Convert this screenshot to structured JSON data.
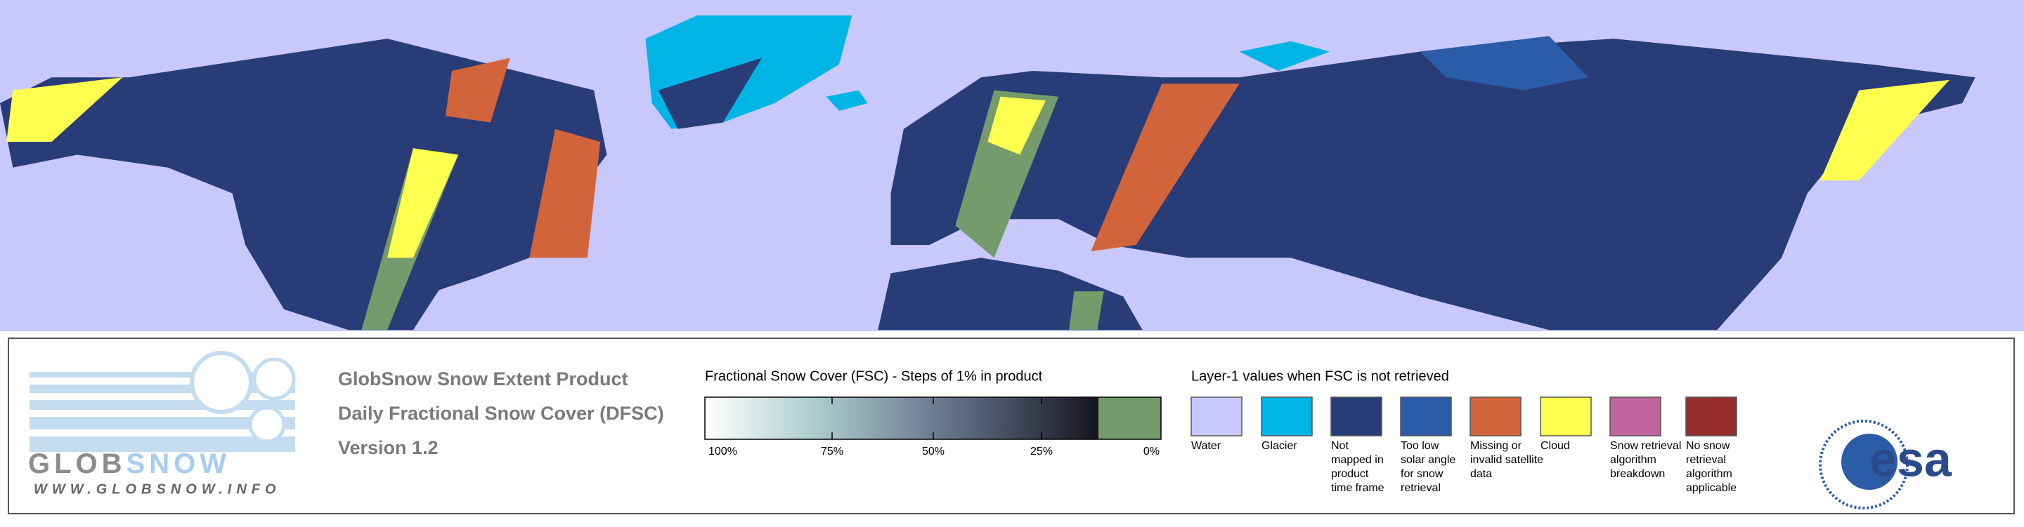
{
  "logo": {
    "name": [
      "GLOB",
      "SNOW"
    ],
    "url": "WWW.GLOBSNOW.INFO"
  },
  "product": {
    "lines": [
      "GlobSnow Snow Extent Product",
      "Daily Fractional Snow Cover (DFSC)",
      "Version 1.2"
    ]
  },
  "fsc_scale": {
    "title": "Fractional Snow Cover (FSC) - Steps of 1% in product",
    "ticks": [
      "100%",
      "75%",
      "50%",
      "25%",
      "0%"
    ]
  },
  "layer1": {
    "title": "Layer-1 values when FSC is not retrieved",
    "items": [
      {
        "label": [
          "Water"
        ],
        "color": "#c8c8fa"
      },
      {
        "label": [
          "Glacier"
        ],
        "color": "#00b4e6"
      },
      {
        "label": [
          "Not",
          "mapped in",
          "product",
          "time frame"
        ],
        "color": "#283c78"
      },
      {
        "label": [
          "Too low",
          "solar angle",
          "for snow",
          "retrieval"
        ],
        "color": "#2a5ca8"
      },
      {
        "label": [
          "Missing or",
          "invalid satellite",
          "data"
        ],
        "color": "#d2643c"
      },
      {
        "label": [
          "Cloud"
        ],
        "color": "#ffff50"
      },
      {
        "label": [
          "Snow retrieval",
          "algorithm",
          "breakdown"
        ],
        "color": "#c0649e"
      },
      {
        "label": [
          "No snow",
          "retrieval",
          "algorithm",
          "applicable"
        ],
        "color": "#962d2d"
      }
    ]
  },
  "agency": "esa"
}
